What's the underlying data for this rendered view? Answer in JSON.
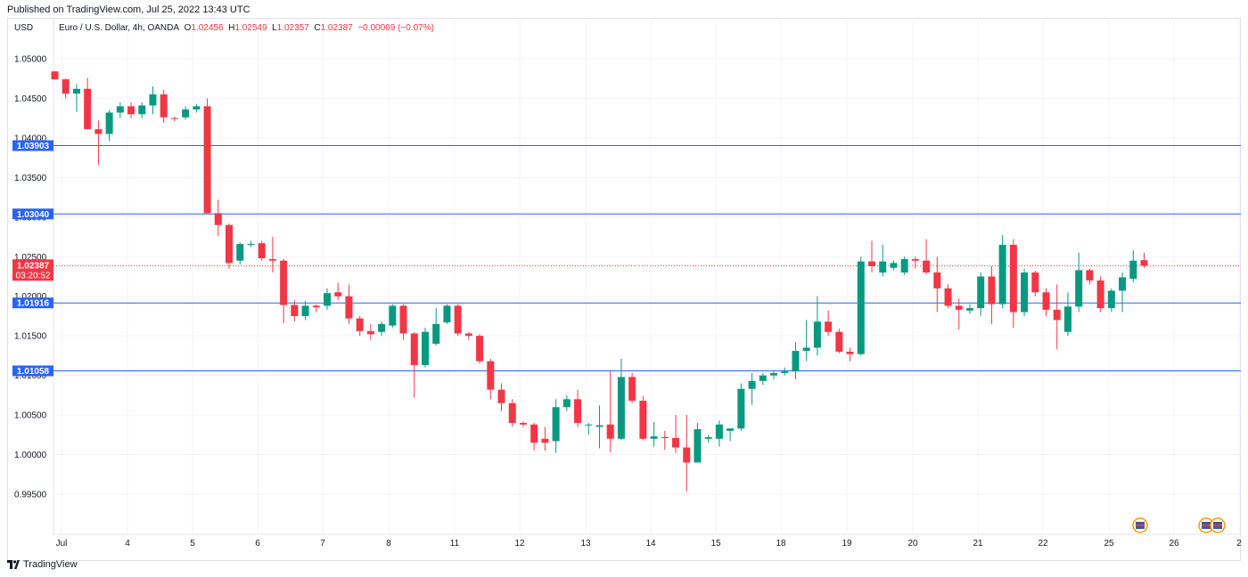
{
  "header": {
    "published": "Published on TradingView.com, Jul 25, 2022 13:43 UTC"
  },
  "legend": {
    "symbol": "Euro / U.S. Dollar, 4h, OANDA",
    "o_label": "O",
    "o": "1.02456",
    "h_label": "H",
    "h": "1.02549",
    "l_label": "L",
    "l": "1.02357",
    "c_label": "C",
    "c": "1.02387",
    "change": "−0.00069 (−0.07%)"
  },
  "currency": "USD",
  "footer": {
    "brand": "TradingView"
  },
  "colors": {
    "up": "#089981",
    "down": "#f23645",
    "hline": "#2962ff",
    "grid": "#f0f3fa",
    "axis_text": "#131722"
  },
  "chart_data": {
    "type": "candlestick",
    "ylim": [
      0.9925,
      1.0525
    ],
    "yticks": [
      "1.05000",
      "1.04500",
      "1.04000",
      "1.03500",
      "1.03000",
      "1.02500",
      "1.02000",
      "1.01500",
      "1.01000",
      "1.00500",
      "1.00000",
      "0.99500"
    ],
    "ytick_values": [
      1.05,
      1.045,
      1.04,
      1.035,
      1.03,
      1.025,
      1.02,
      1.015,
      1.01,
      1.005,
      1.0,
      0.995
    ],
    "xticks": [
      "Jul",
      "4",
      "5",
      "6",
      "7",
      "8",
      "11",
      "12",
      "13",
      "14",
      "15",
      "18",
      "19",
      "20",
      "21",
      "22",
      "25",
      "26",
      "2"
    ],
    "horizontal_levels": [
      "1.03903",
      "1.03040",
      "1.01916",
      "1.01058"
    ],
    "horizontal_level_values": [
      1.03903,
      1.0304,
      1.01916,
      1.01058
    ],
    "current_price": {
      "price": "1.02387",
      "value": 1.02387,
      "countdown": "03:20:52"
    },
    "candles": [
      {
        "o": 1.0484,
        "h": 1.0484,
        "l": 1.0474,
        "c": 1.0474
      },
      {
        "o": 1.0474,
        "h": 1.0475,
        "l": 1.045,
        "c": 1.0456
      },
      {
        "o": 1.0456,
        "h": 1.0468,
        "l": 1.0433,
        "c": 1.0462
      },
      {
        "o": 1.0462,
        "h": 1.0476,
        "l": 1.0411,
        "c": 1.0411
      },
      {
        "o": 1.0411,
        "h": 1.0422,
        "l": 1.0366,
        "c": 1.0405
      },
      {
        "o": 1.0405,
        "h": 1.0435,
        "l": 1.0396,
        "c": 1.0432
      },
      {
        "o": 1.0432,
        "h": 1.0445,
        "l": 1.0425,
        "c": 1.044
      },
      {
        "o": 1.044,
        "h": 1.0445,
        "l": 1.0425,
        "c": 1.043
      },
      {
        "o": 1.043,
        "h": 1.0445,
        "l": 1.0425,
        "c": 1.0441
      },
      {
        "o": 1.0441,
        "h": 1.0465,
        "l": 1.043,
        "c": 1.0455
      },
      {
        "o": 1.0455,
        "h": 1.0461,
        "l": 1.0419,
        "c": 1.0426
      },
      {
        "o": 1.0425,
        "h": 1.0427,
        "l": 1.0421,
        "c": 1.0424
      },
      {
        "o": 1.0426,
        "h": 1.044,
        "l": 1.0423,
        "c": 1.0436
      },
      {
        "o": 1.0436,
        "h": 1.0443,
        "l": 1.0432,
        "c": 1.044
      },
      {
        "o": 1.044,
        "h": 1.045,
        "l": 1.0305,
        "c": 1.0305
      },
      {
        "o": 1.0305,
        "h": 1.0322,
        "l": 1.0276,
        "c": 1.029
      },
      {
        "o": 1.029,
        "h": 1.0292,
        "l": 1.0235,
        "c": 1.0242
      },
      {
        "o": 1.0245,
        "h": 1.0268,
        "l": 1.024,
        "c": 1.0266
      },
      {
        "o": 1.0266,
        "h": 1.027,
        "l": 1.0262,
        "c": 1.0266
      },
      {
        "o": 1.0267,
        "h": 1.027,
        "l": 1.0245,
        "c": 1.0248
      },
      {
        "o": 1.0247,
        "h": 1.0275,
        "l": 1.023,
        "c": 1.0245
      },
      {
        "o": 1.0245,
        "h": 1.0247,
        "l": 1.0166,
        "c": 1.0189
      },
      {
        "o": 1.0189,
        "h": 1.0195,
        "l": 1.0168,
        "c": 1.0175
      },
      {
        "o": 1.0175,
        "h": 1.0194,
        "l": 1.017,
        "c": 1.0188
      },
      {
        "o": 1.0188,
        "h": 1.019,
        "l": 1.018,
        "c": 1.0186
      },
      {
        "o": 1.0188,
        "h": 1.021,
        "l": 1.0183,
        "c": 1.0204
      },
      {
        "o": 1.0205,
        "h": 1.0217,
        "l": 1.0195,
        "c": 1.02
      },
      {
        "o": 1.02,
        "h": 1.0215,
        "l": 1.0165,
        "c": 1.0172
      },
      {
        "o": 1.0172,
        "h": 1.0175,
        "l": 1.015,
        "c": 1.0156
      },
      {
        "o": 1.0156,
        "h": 1.0165,
        "l": 1.0145,
        "c": 1.0152
      },
      {
        "o": 1.0155,
        "h": 1.0168,
        "l": 1.015,
        "c": 1.0165
      },
      {
        "o": 1.0163,
        "h": 1.019,
        "l": 1.016,
        "c": 1.0188
      },
      {
        "o": 1.0188,
        "h": 1.019,
        "l": 1.0145,
        "c": 1.0153
      },
      {
        "o": 1.0153,
        "h": 1.0155,
        "l": 1.0072,
        "c": 1.0113
      },
      {
        "o": 1.0113,
        "h": 1.016,
        "l": 1.011,
        "c": 1.0155
      },
      {
        "o": 1.014,
        "h": 1.0185,
        "l": 1.0138,
        "c": 1.0165
      },
      {
        "o": 1.0167,
        "h": 1.019,
        "l": 1.0165,
        "c": 1.0188
      },
      {
        "o": 1.0188,
        "h": 1.019,
        "l": 1.015,
        "c": 1.0153
      },
      {
        "o": 1.0153,
        "h": 1.0155,
        "l": 1.0145,
        "c": 1.015
      },
      {
        "o": 1.015,
        "h": 1.0152,
        "l": 1.0115,
        "c": 1.0118
      },
      {
        "o": 1.0118,
        "h": 1.0121,
        "l": 1.007,
        "c": 1.0082
      },
      {
        "o": 1.0082,
        "h": 1.009,
        "l": 1.0055,
        "c": 1.0065
      },
      {
        "o": 1.0065,
        "h": 1.007,
        "l": 1.0035,
        "c": 1.004
      },
      {
        "o": 1.004,
        "h": 1.0042,
        "l": 1.0035,
        "c": 1.0038
      },
      {
        "o": 1.0038,
        "h": 1.004,
        "l": 1.0005,
        "c": 1.0015
      },
      {
        "o": 1.002,
        "h": 1.0035,
        "l": 1.0005,
        "c": 1.0015
      },
      {
        "o": 1.0017,
        "h": 1.007,
        "l": 1.0002,
        "c": 1.006
      },
      {
        "o": 1.006,
        "h": 1.0075,
        "l": 1.0055,
        "c": 1.007
      },
      {
        "o": 1.007,
        "h": 1.0082,
        "l": 1.0035,
        "c": 1.004
      },
      {
        "o": 1.0037,
        "h": 1.004,
        "l": 1.0025,
        "c": 1.0038
      },
      {
        "o": 1.0035,
        "h": 1.0062,
        "l": 1.0008,
        "c": 1.0037
      },
      {
        "o": 1.0038,
        "h": 1.0105,
        "l": 1.0003,
        "c": 1.002
      },
      {
        "o": 1.002,
        "h": 1.0121,
        "l": 1.0018,
        "c": 1.0098
      },
      {
        "o": 1.0098,
        "h": 1.0103,
        "l": 1.0065,
        "c": 1.0068
      },
      {
        "o": 1.0068,
        "h": 1.0074,
        "l": 1.0018,
        "c": 1.002
      },
      {
        "o": 1.002,
        "h": 1.0041,
        "l": 1.001,
        "c": 1.0023
      },
      {
        "o": 1.0022,
        "h": 1.003,
        "l": 1.0006,
        "c": 1.0021
      },
      {
        "o": 1.0021,
        "h": 1.005,
        "l": 1.0002,
        "c": 1.0009
      },
      {
        "o": 1.0009,
        "h": 1.005,
        "l": 0.9953,
        "c": 0.999
      },
      {
        "o": 0.999,
        "h": 1.004,
        "l": 0.999,
        "c": 1.0032
      },
      {
        "o": 1.002,
        "h": 1.0025,
        "l": 1.0015,
        "c": 1.0022
      },
      {
        "o": 1.002,
        "h": 1.0043,
        "l": 1.001,
        "c": 1.0038
      },
      {
        "o": 1.003,
        "h": 1.0033,
        "l": 1.0017,
        "c": 1.0033
      },
      {
        "o": 1.0033,
        "h": 1.009,
        "l": 1.003,
        "c": 1.0083
      },
      {
        "o": 1.0083,
        "h": 1.0103,
        "l": 1.0063,
        "c": 1.0093
      },
      {
        "o": 1.0093,
        "h": 1.0103,
        "l": 1.0088,
        "c": 1.01
      },
      {
        "o": 1.01,
        "h": 1.0106,
        "l": 1.0095,
        "c": 1.0103
      },
      {
        "o": 1.0103,
        "h": 1.011,
        "l": 1.01,
        "c": 1.0105
      },
      {
        "o": 1.0105,
        "h": 1.0142,
        "l": 1.0095,
        "c": 1.0131
      },
      {
        "o": 1.0131,
        "h": 1.017,
        "l": 1.0118,
        "c": 1.0135
      },
      {
        "o": 1.0135,
        "h": 1.02,
        "l": 1.0125,
        "c": 1.0168
      },
      {
        "o": 1.0168,
        "h": 1.0182,
        "l": 1.015,
        "c": 1.0155
      },
      {
        "o": 1.0155,
        "h": 1.0159,
        "l": 1.0128,
        "c": 1.013
      },
      {
        "o": 1.013,
        "h": 1.0135,
        "l": 1.0118,
        "c": 1.0127
      },
      {
        "o": 1.0127,
        "h": 1.025,
        "l": 1.0125,
        "c": 1.0244
      },
      {
        "o": 1.0244,
        "h": 1.027,
        "l": 1.023,
        "c": 1.0238
      },
      {
        "o": 1.023,
        "h": 1.0265,
        "l": 1.0225,
        "c": 1.0244
      },
      {
        "o": 1.0236,
        "h": 1.0245,
        "l": 1.0233,
        "c": 1.0242
      },
      {
        "o": 1.023,
        "h": 1.025,
        "l": 1.0227,
        "c": 1.0247
      },
      {
        "o": 1.0247,
        "h": 1.025,
        "l": 1.0235,
        "c": 1.0245
      },
      {
        "o": 1.0245,
        "h": 1.0272,
        "l": 1.0228,
        "c": 1.023
      },
      {
        "o": 1.023,
        "h": 1.025,
        "l": 1.018,
        "c": 1.021
      },
      {
        "o": 1.021,
        "h": 1.0215,
        "l": 1.0185,
        "c": 1.0188
      },
      {
        "o": 1.0188,
        "h": 1.0197,
        "l": 1.0158,
        "c": 1.0183
      },
      {
        "o": 1.0182,
        "h": 1.019,
        "l": 1.0178,
        "c": 1.0185
      },
      {
        "o": 1.0185,
        "h": 1.023,
        "l": 1.0175,
        "c": 1.0225
      },
      {
        "o": 1.0225,
        "h": 1.0238,
        "l": 1.0165,
        "c": 1.019
      },
      {
        "o": 1.019,
        "h": 1.0277,
        "l": 1.0185,
        "c": 1.0265
      },
      {
        "o": 1.0265,
        "h": 1.0272,
        "l": 1.016,
        "c": 1.018
      },
      {
        "o": 1.018,
        "h": 1.0235,
        "l": 1.0175,
        "c": 1.023
      },
      {
        "o": 1.023,
        "h": 1.0232,
        "l": 1.02,
        "c": 1.0205
      },
      {
        "o": 1.0205,
        "h": 1.021,
        "l": 1.0175,
        "c": 1.0183
      },
      {
        "o": 1.0183,
        "h": 1.0215,
        "l": 1.0133,
        "c": 1.017
      },
      {
        "o": 1.0155,
        "h": 1.0205,
        "l": 1.015,
        "c": 1.0187
      },
      {
        "o": 1.0187,
        "h": 1.0255,
        "l": 1.018,
        "c": 1.0233
      },
      {
        "o": 1.0233,
        "h": 1.0235,
        "l": 1.0215,
        "c": 1.022
      },
      {
        "o": 1.022,
        "h": 1.0225,
        "l": 1.018,
        "c": 1.0185
      },
      {
        "o": 1.0185,
        "h": 1.021,
        "l": 1.018,
        "c": 1.0207
      },
      {
        "o": 1.0207,
        "h": 1.023,
        "l": 1.018,
        "c": 1.0224
      },
      {
        "o": 1.0222,
        "h": 1.0258,
        "l": 1.0218,
        "c": 1.0245
      },
      {
        "o": 1.02456,
        "h": 1.02549,
        "l": 1.02357,
        "c": 1.02387
      }
    ]
  }
}
